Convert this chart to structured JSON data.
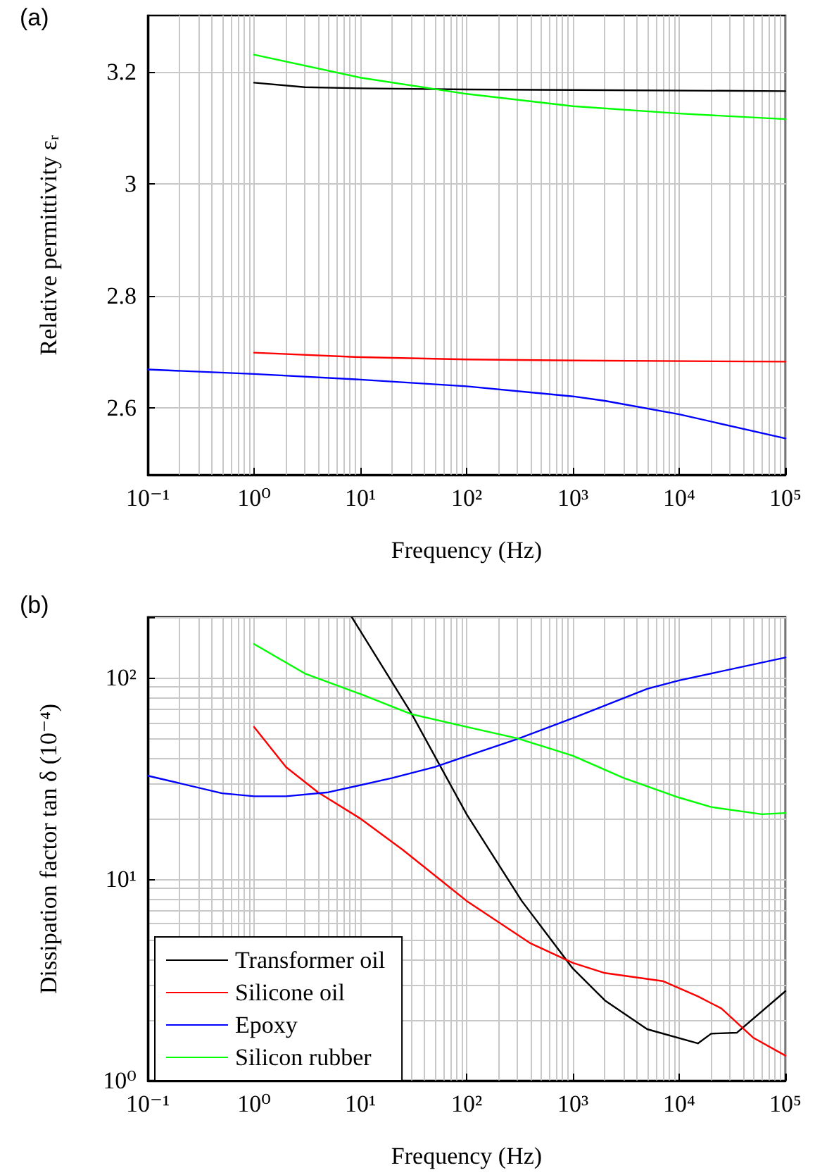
{
  "chart_data": [
    {
      "type": "line",
      "annotations": [
        "(a)"
      ],
      "xlabel": "Frequency (Hz)",
      "ylabel": "Relative permittivity εᵣ",
      "log": "x",
      "grid": true,
      "legend": false,
      "marker": "none",
      "line_style": "solid",
      "xlim": [
        0.1,
        100000
      ],
      "xticks": [
        {
          "value": 0.1,
          "label": "10⁻¹"
        },
        {
          "value": 1,
          "label": "10⁰"
        },
        {
          "value": 10,
          "label": "10¹"
        },
        {
          "value": 100,
          "label": "10²"
        },
        {
          "value": 1000,
          "label": "10³"
        },
        {
          "value": 10000,
          "label": "10⁴"
        },
        {
          "value": 100000,
          "label": "10⁵"
        }
      ],
      "ylim": [
        2.48,
        3.3
      ],
      "yticks": [
        2.6,
        2.8,
        3,
        3.2
      ],
      "series": [
        {
          "color": "#000000",
          "x": [
            1,
            3,
            10,
            100,
            1000,
            100000
          ],
          "values": [
            3.18,
            3.172,
            3.17,
            3.168,
            3.167,
            3.165
          ]
        },
        {
          "color": "#ff0000",
          "x": [
            1,
            10,
            100,
            1000,
            100000
          ],
          "values": [
            2.698,
            2.69,
            2.686,
            2.684,
            2.682
          ]
        },
        {
          "color": "#0000ff",
          "x": [
            0.1,
            1,
            10,
            100,
            1000,
            2000,
            10000,
            100000
          ],
          "values": [
            2.668,
            2.66,
            2.65,
            2.638,
            2.62,
            2.612,
            2.588,
            2.545
          ]
        },
        {
          "color": "#00ff00",
          "x": [
            1,
            10,
            100,
            1000,
            10000,
            100000
          ],
          "values": [
            3.23,
            3.189,
            3.16,
            3.138,
            3.125,
            3.115
          ]
        }
      ]
    },
    {
      "type": "line",
      "annotations": [
        "(b)"
      ],
      "xlabel": "Frequency (Hz)",
      "ylabel": "Dissipation factor tan δ (10⁻⁴)",
      "log": "xy",
      "grid": true,
      "legend": "bottom left",
      "marker": "none",
      "line_style": "solid",
      "xlim": [
        0.1,
        100000
      ],
      "xticks": [
        {
          "value": 0.1,
          "label": "10⁻¹"
        },
        {
          "value": 1,
          "label": "10⁰"
        },
        {
          "value": 10,
          "label": "10¹"
        },
        {
          "value": 100,
          "label": "10²"
        },
        {
          "value": 1000,
          "label": "10³"
        },
        {
          "value": 10000,
          "label": "10⁴"
        },
        {
          "value": 100000,
          "label": "10⁵"
        }
      ],
      "ylim": [
        1,
        200
      ],
      "yticks": [
        {
          "value": 1,
          "label": "10⁰"
        },
        {
          "value": 10,
          "label": "10¹"
        },
        {
          "value": 100,
          "label": "10²"
        }
      ],
      "series": [
        {
          "name": "Transformer oil",
          "color": "#000000",
          "x": [
            8.3,
            30,
            100,
            330,
            1000,
            2000,
            5000,
            15000,
            20000,
            35000,
            100000
          ],
          "values": [
            200,
            67,
            21,
            7.8,
            3.6,
            2.5,
            1.8,
            1.53,
            1.71,
            1.73,
            2.78
          ]
        },
        {
          "name": "Silicone oil",
          "color": "#ff0000",
          "x": [
            1,
            2,
            4,
            10,
            25,
            100,
            400,
            1000,
            2000,
            7000,
            15000,
            25000,
            50000,
            100000
          ],
          "values": [
            57,
            36,
            27,
            20,
            14,
            7.8,
            4.8,
            3.84,
            3.42,
            3.12,
            2.62,
            2.28,
            1.63,
            1.33
          ]
        },
        {
          "name": "Epoxy",
          "color": "#0000ff",
          "x": [
            0.1,
            0.5,
            1,
            2,
            5,
            20,
            50,
            100,
            300,
            1000,
            5000,
            10000,
            100000
          ],
          "values": [
            32.6,
            26.7,
            25.8,
            25.8,
            27,
            31.8,
            36,
            40.8,
            49.6,
            63,
            88,
            97,
            126
          ]
        },
        {
          "name": "Silicon rubber",
          "color": "#00ff00",
          "x": [
            1,
            3,
            10,
            30,
            100,
            300,
            1000,
            3000,
            10000,
            20000,
            60000,
            100000
          ],
          "values": [
            147,
            105,
            83,
            66,
            57,
            50,
            41,
            31.8,
            25.4,
            22.8,
            21,
            21.3
          ]
        }
      ]
    }
  ]
}
